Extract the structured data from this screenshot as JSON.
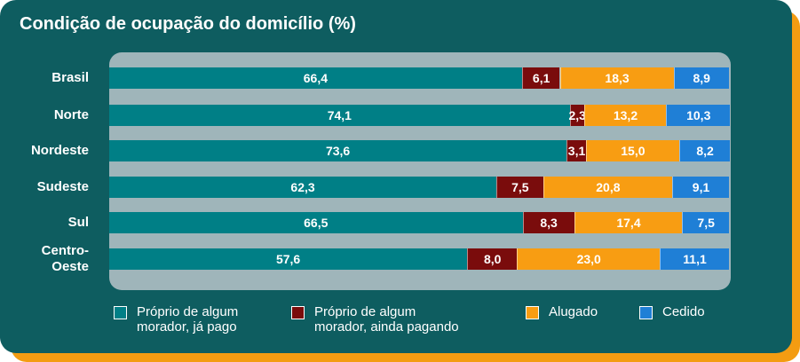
{
  "chart_data": {
    "type": "bar",
    "orientation": "horizontal",
    "stacked": true,
    "title": "Condição de ocupação do domicílio (%)",
    "categories": [
      "Brasil",
      "Norte",
      "Nordeste",
      "Sudeste",
      "Sul",
      "Centro-\nOeste"
    ],
    "series": [
      {
        "name": "Próprio de algum\nmorador, já pago",
        "color": "#007f86",
        "text_color": "#ffffff",
        "values": [
          66.4,
          74.1,
          73.6,
          62.3,
          66.5,
          57.6
        ],
        "labels": [
          "66,4",
          "74,1",
          "73,6",
          "62,3",
          "66,5",
          "57,6"
        ]
      },
      {
        "name": "Próprio de algum\nmorador, ainda pagando",
        "color": "#7a0c0c",
        "text_color": "#ffffff",
        "values": [
          6.1,
          2.3,
          3.1,
          7.5,
          8.3,
          8.0
        ],
        "labels": [
          "6,1",
          "2,3",
          "3,1",
          "7,5",
          "8,3",
          "8,0"
        ]
      },
      {
        "name": "Alugado",
        "color": "#f89d12",
        "text_color": "#ffffff",
        "values": [
          18.3,
          13.2,
          15.0,
          20.8,
          17.4,
          23.0
        ],
        "labels": [
          "18,3",
          "13,2",
          "15,0",
          "20,8",
          "17,4",
          "23,0"
        ]
      },
      {
        "name": "Cedido",
        "color": "#1f7fd6",
        "text_color": "#ffffff",
        "values": [
          8.9,
          10.3,
          8.2,
          9.1,
          7.5,
          11.1
        ],
        "labels": [
          "8,9",
          "10,3",
          "8,2",
          "9,1",
          "7,5",
          "11,1"
        ]
      }
    ],
    "xlim": [
      0,
      100
    ],
    "legend": "bottom"
  }
}
